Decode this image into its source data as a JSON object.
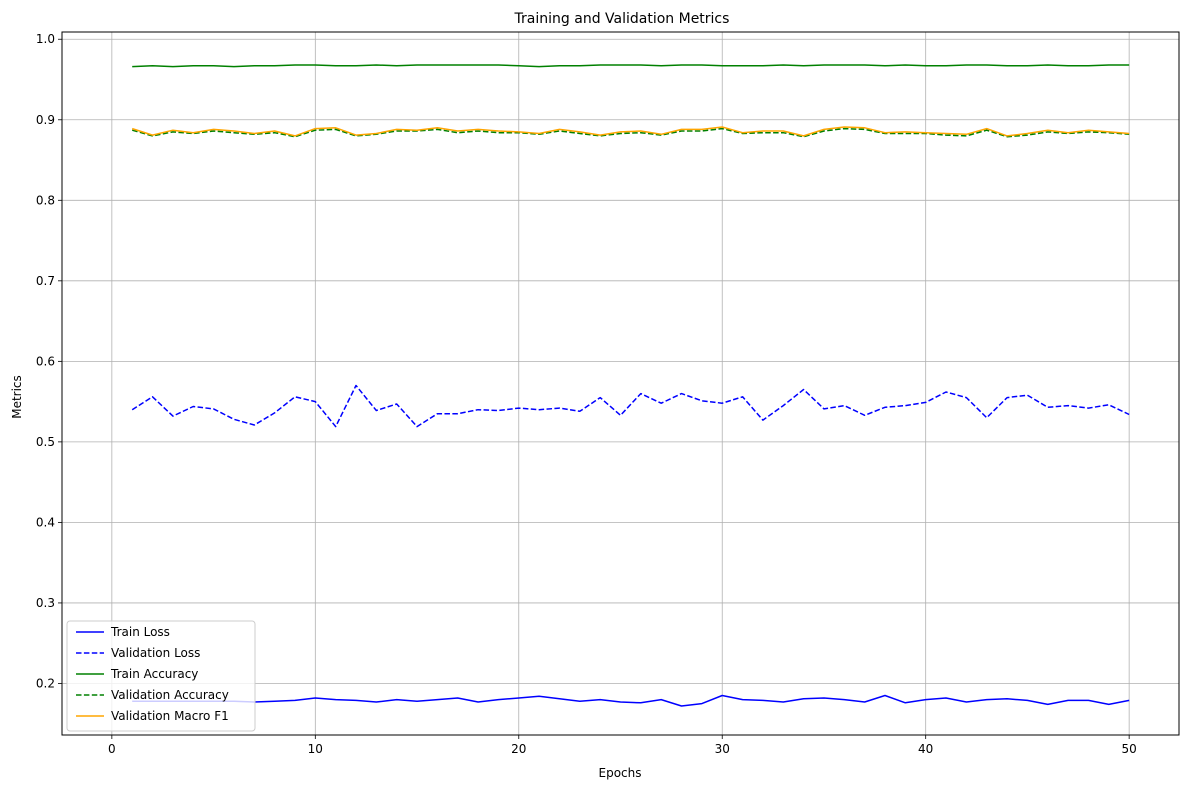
{
  "chart_data": {
    "type": "line",
    "title": "Training and Validation Metrics",
    "xlabel": "Epochs",
    "ylabel": "Metrics",
    "xlim": [
      -2.45,
      52.45
    ],
    "ylim": [
      0.136,
      1.009
    ],
    "xticks": [
      0,
      10,
      20,
      30,
      40,
      50
    ],
    "yticks": [
      0.2,
      0.3,
      0.4,
      0.5,
      0.6,
      0.7,
      0.8,
      0.9,
      1.0
    ],
    "ytick_labels": [
      "0.2",
      "0.3",
      "0.4",
      "0.5",
      "0.6",
      "0.7",
      "0.8",
      "0.9",
      "1.0"
    ],
    "grid": true,
    "legend_position": "lower-left",
    "x": [
      1,
      2,
      3,
      4,
      5,
      6,
      7,
      8,
      9,
      10,
      11,
      12,
      13,
      14,
      15,
      16,
      17,
      18,
      19,
      20,
      21,
      22,
      23,
      24,
      25,
      26,
      27,
      28,
      29,
      30,
      31,
      32,
      33,
      34,
      35,
      36,
      37,
      38,
      39,
      40,
      41,
      42,
      43,
      44,
      45,
      46,
      47,
      48,
      49,
      50
    ],
    "series": [
      {
        "name": "Train Loss",
        "color": "#0000ff",
        "dash": "solid",
        "values": [
          0.178,
          0.178,
          0.178,
          0.178,
          0.178,
          0.178,
          0.177,
          0.178,
          0.179,
          0.182,
          0.18,
          0.179,
          0.177,
          0.18,
          0.178,
          0.18,
          0.182,
          0.177,
          0.18,
          0.182,
          0.184,
          0.181,
          0.178,
          0.18,
          0.177,
          0.176,
          0.18,
          0.172,
          0.175,
          0.185,
          0.18,
          0.179,
          0.177,
          0.181,
          0.182,
          0.18,
          0.177,
          0.185,
          0.176,
          0.18,
          0.182,
          0.177,
          0.18,
          0.181,
          0.179,
          0.174,
          0.179,
          0.179,
          0.174,
          0.179
        ]
      },
      {
        "name": "Validation Loss",
        "color": "#0000ff",
        "dash": "dashed",
        "values": [
          0.54,
          0.556,
          0.532,
          0.544,
          0.541,
          0.528,
          0.521,
          0.536,
          0.556,
          0.55,
          0.519,
          0.57,
          0.539,
          0.547,
          0.519,
          0.535,
          0.535,
          0.54,
          0.539,
          0.542,
          0.54,
          0.542,
          0.538,
          0.555,
          0.533,
          0.56,
          0.548,
          0.56,
          0.551,
          0.548,
          0.556,
          0.527,
          0.545,
          0.565,
          0.541,
          0.545,
          0.533,
          0.543,
          0.545,
          0.549,
          0.562,
          0.555,
          0.53,
          0.555,
          0.558,
          0.543,
          0.545,
          0.542,
          0.546,
          0.534
        ]
      },
      {
        "name": "Train Accuracy",
        "color": "#008000",
        "dash": "solid",
        "values": [
          0.966,
          0.967,
          0.966,
          0.967,
          0.967,
          0.966,
          0.967,
          0.967,
          0.968,
          0.968,
          0.967,
          0.967,
          0.968,
          0.967,
          0.968,
          0.968,
          0.968,
          0.968,
          0.968,
          0.967,
          0.966,
          0.967,
          0.967,
          0.968,
          0.968,
          0.968,
          0.967,
          0.968,
          0.968,
          0.967,
          0.967,
          0.967,
          0.968,
          0.967,
          0.968,
          0.968,
          0.968,
          0.967,
          0.968,
          0.967,
          0.967,
          0.968,
          0.968,
          0.967,
          0.967,
          0.968,
          0.967,
          0.967,
          0.968,
          0.968
        ]
      },
      {
        "name": "Validation Accuracy",
        "color": "#008000",
        "dash": "dashed",
        "values": [
          0.887,
          0.88,
          0.885,
          0.883,
          0.886,
          0.884,
          0.882,
          0.884,
          0.879,
          0.887,
          0.888,
          0.88,
          0.882,
          0.886,
          0.886,
          0.888,
          0.884,
          0.886,
          0.884,
          0.884,
          0.882,
          0.886,
          0.883,
          0.88,
          0.883,
          0.884,
          0.881,
          0.886,
          0.886,
          0.889,
          0.883,
          0.884,
          0.884,
          0.879,
          0.886,
          0.889,
          0.888,
          0.883,
          0.883,
          0.883,
          0.881,
          0.88,
          0.887,
          0.879,
          0.881,
          0.885,
          0.883,
          0.885,
          0.884,
          0.882
        ]
      },
      {
        "name": "Validation Macro F1",
        "color": "#ffa500",
        "dash": "solid",
        "values": [
          0.889,
          0.881,
          0.887,
          0.884,
          0.888,
          0.886,
          0.883,
          0.886,
          0.88,
          0.889,
          0.89,
          0.881,
          0.883,
          0.888,
          0.887,
          0.89,
          0.886,
          0.888,
          0.886,
          0.885,
          0.883,
          0.888,
          0.885,
          0.881,
          0.885,
          0.886,
          0.882,
          0.888,
          0.888,
          0.891,
          0.884,
          0.886,
          0.886,
          0.88,
          0.888,
          0.891,
          0.89,
          0.884,
          0.885,
          0.884,
          0.883,
          0.882,
          0.889,
          0.88,
          0.883,
          0.887,
          0.884,
          0.887,
          0.885,
          0.883
        ]
      }
    ]
  }
}
